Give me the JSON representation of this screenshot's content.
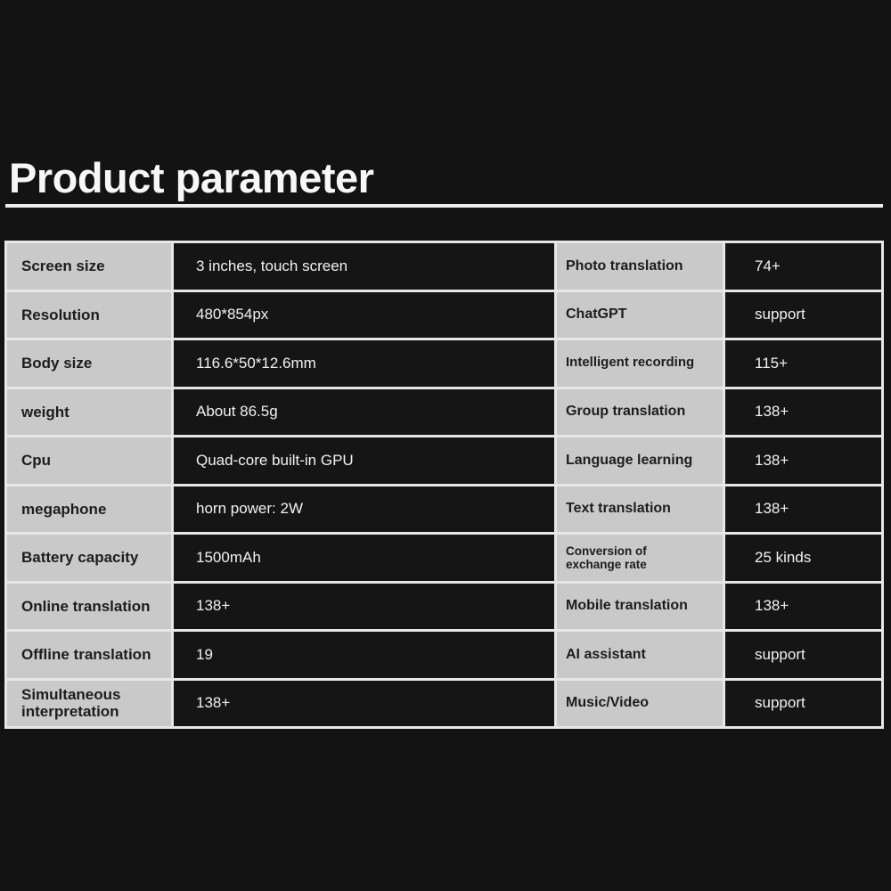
{
  "title": "Product parameter",
  "table": {
    "rows": [
      {
        "spec_label": "Screen size",
        "spec_value": "3 inches, touch screen",
        "feature_label": "Photo translation",
        "feature_value": "74+"
      },
      {
        "spec_label": "Resolution",
        "spec_value": "480*854px",
        "feature_label": "ChatGPT",
        "feature_value": "support"
      },
      {
        "spec_label": "Body size",
        "spec_value": "116.6*50*12.6mm",
        "feature_label": "Intelligent recording",
        "feature_value": "115+"
      },
      {
        "spec_label": "weight",
        "spec_value": "About 86.5g",
        "feature_label": "Group translation",
        "feature_value": "138+"
      },
      {
        "spec_label": "Cpu",
        "spec_value": "Quad-core built-in GPU",
        "feature_label": "Language learning",
        "feature_value": "138+"
      },
      {
        "spec_label": "megaphone",
        "spec_value": "horn power: 2W",
        "feature_label": "Text translation",
        "feature_value": "138+"
      },
      {
        "spec_label": "Battery capacity",
        "spec_value": "1500mAh",
        "feature_label": "Conversion of exchange rate",
        "feature_value": "25 kinds"
      },
      {
        "spec_label": "Online translation",
        "spec_value": "138+",
        "feature_label": "Mobile translation",
        "feature_value": "138+"
      },
      {
        "spec_label": "Offline translation",
        "spec_value": "19",
        "feature_label": "AI assistant",
        "feature_value": "support"
      },
      {
        "spec_label": "Simultaneous interpretation",
        "spec_value": "138+",
        "feature_label": "Music/Video",
        "feature_value": "support"
      }
    ]
  },
  "colors": {
    "page_background": "#131313",
    "label_cell_background": "#c9c9c9",
    "value_cell_background": "#151515",
    "divider": "#e7e7e7",
    "title_text": "#f7f7f7",
    "label_text": "#1d1d1d",
    "value_text": "#f1f1f1"
  }
}
